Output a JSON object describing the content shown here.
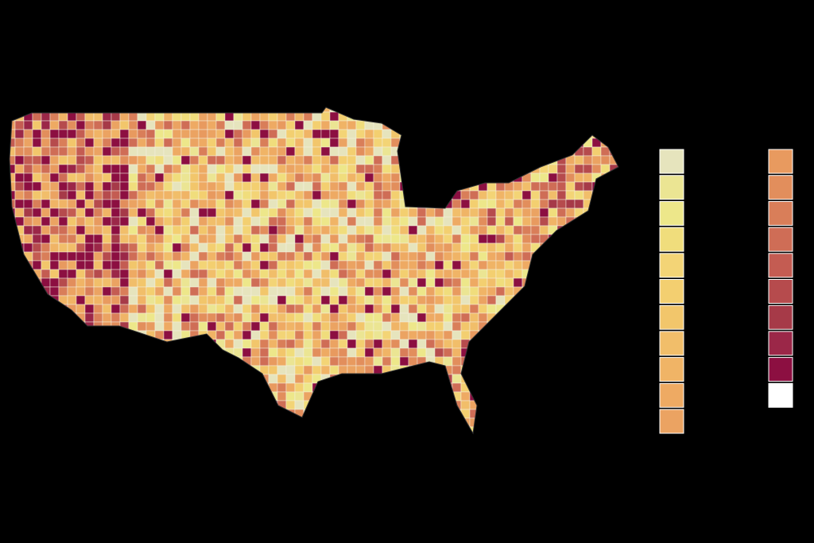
{
  "map": {
    "background": "#000000",
    "legend": {
      "columns": [
        {
          "colors": [
            "#e6e4bd",
            "#ebe593",
            "#ede78a",
            "#f0dd7c",
            "#f3d476",
            "#f3cf70",
            "#f2c66b",
            "#f1be6a",
            "#f0b466",
            "#eeaa63",
            "#eba362"
          ]
        },
        {
          "colors": [
            "#e89a5f",
            "#e28e5c",
            "#d97e59",
            "#cf6d56",
            "#c45c52",
            "#b64b4d",
            "#a63a48",
            "#9b2748",
            "#8c0f41",
            "#ffffff"
          ]
        }
      ]
    }
  }
}
